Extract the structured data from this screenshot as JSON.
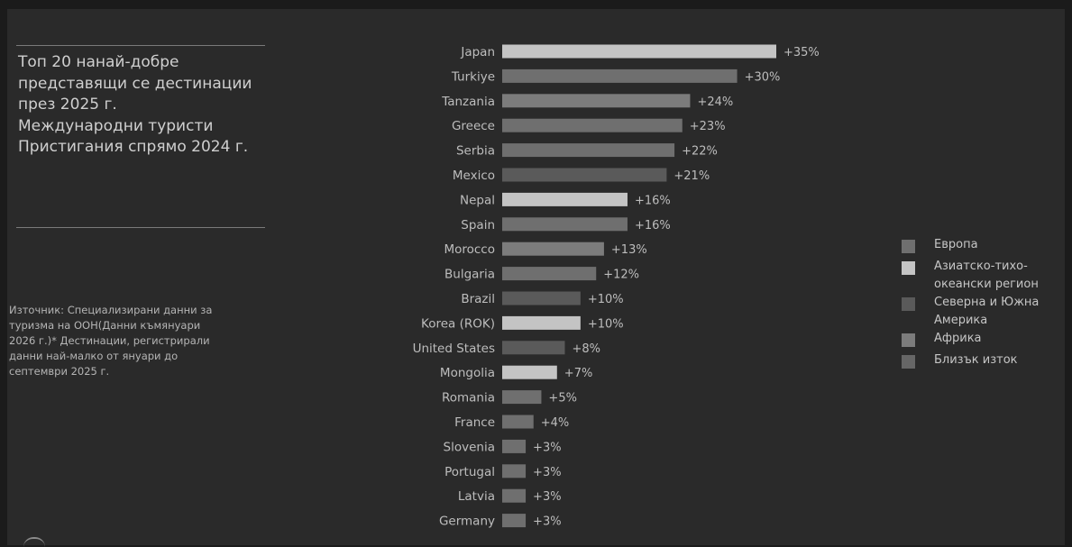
{
  "title": "Топ 20 нанай-добре\nпредставящи се дестинации\nпрез 2025 г.\nМеждународни туристи\nПристигания спрямо 2024 г.",
  "source": "Източник: Специализирани данни за\nтуризма на ООН(Данни къмянуари\n2026 г.)* Дестинации, регистрирали\nданни най-малко от януари до\nсептември 2025 г.",
  "legend": [
    {
      "label": "Европа",
      "color": "#6f6f6f"
    },
    {
      "label": "Азиатско-тихо-\nокеански регион",
      "color": "#c4c4c4"
    },
    {
      "label": "Северна и Южна\nАмерика",
      "color": "#5a5a5a"
    },
    {
      "label": "Африка",
      "color": "#7c7c7c"
    },
    {
      "label": "Близък изток",
      "color": "#666666"
    }
  ],
  "colors": {
    "europe": "#6f6f6f",
    "asia_pacific": "#c4c4c4",
    "americas": "#5a5a5a",
    "africa": "#7c7c7c"
  },
  "chart_data": {
    "type": "bar",
    "orientation": "horizontal",
    "categories": [
      "Japan",
      "Turkiye",
      "Tanzania",
      "Greece",
      "Serbia",
      "Mexico",
      "Nepal",
      "Spain",
      "Morocco",
      "Bulgaria",
      "Brazil",
      "Korea (ROK)",
      "United States",
      "Mongolia",
      "Romania",
      "France",
      "Slovenia",
      "Portugal",
      "Latvia",
      "Germany"
    ],
    "values": [
      35,
      30,
      24,
      23,
      22,
      21,
      16,
      16,
      13,
      12,
      10,
      10,
      8,
      7,
      5,
      4,
      3,
      3,
      3,
      3
    ],
    "labels": [
      "+35%",
      "+30%",
      "+24%",
      "+23%",
      "+22%",
      "+21%",
      "+16%",
      "+16%",
      "+13%",
      "+12%",
      "+10%",
      "+10%",
      "+8%",
      "+7%",
      "+5%",
      "+4%",
      "+3%",
      "+3%",
      "+3%",
      "+3%"
    ],
    "regions": [
      "asia_pacific",
      "europe",
      "africa",
      "europe",
      "europe",
      "americas",
      "asia_pacific",
      "europe",
      "africa",
      "europe",
      "americas",
      "asia_pacific",
      "americas",
      "asia_pacific",
      "europe",
      "europe",
      "europe",
      "europe",
      "europe",
      "europe"
    ],
    "xlim": [
      0,
      35
    ],
    "legend_position": "right"
  }
}
